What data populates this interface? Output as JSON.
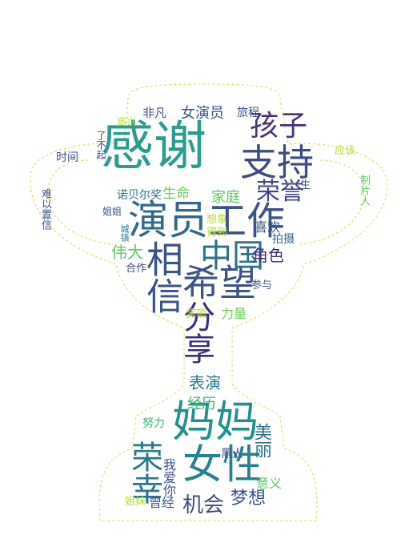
{
  "wordcloud": {
    "shape": "trophy",
    "outline_color": "#e8d44a",
    "background": "#ffffff",
    "words": [
      {
        "text": "感谢",
        "color": "#2a9d8f"
      },
      {
        "text": "工作",
        "color": "#3b528b"
      },
      {
        "text": "演员",
        "color": "#31688e"
      },
      {
        "text": "希望",
        "color": "#3b528b"
      },
      {
        "text": "支持",
        "color": "#3e4a89"
      },
      {
        "text": "相信",
        "color": "#3b528b"
      },
      {
        "text": "中国",
        "color": "#2c728e"
      },
      {
        "text": "分享",
        "color": "#3b2f7d"
      },
      {
        "text": "孩子",
        "color": "#46327e"
      },
      {
        "text": "荣誉",
        "color": "#414487"
      },
      {
        "text": "女演员",
        "color": "#3b528b"
      },
      {
        "text": "妈妈",
        "color": "#21918c"
      },
      {
        "text": "女性",
        "color": "#26828e"
      },
      {
        "text": "荣幸",
        "color": "#2a788e"
      },
      {
        "text": "机会",
        "color": "#3e4a89"
      },
      {
        "text": "梦想",
        "color": "#3b528b"
      },
      {
        "text": "美丽",
        "color": "#2c728e"
      },
      {
        "text": "伟大",
        "color": "#5ec962"
      },
      {
        "text": "角色",
        "color": "#3b2f7d"
      },
      {
        "text": "家庭",
        "color": "#5ec962"
      },
      {
        "text": "生命",
        "color": "#6ece58"
      },
      {
        "text": "表演",
        "color": "#2a788e"
      },
      {
        "text": "经历",
        "color": "#35b779"
      },
      {
        "text": "力量",
        "color": "#6ece58"
      },
      {
        "text": "喜欢",
        "color": "#3b528b"
      },
      {
        "text": "拍摄",
        "color": "#31688e"
      },
      {
        "text": "非凡",
        "color": "#3b528b"
      },
      {
        "text": "旅程",
        "color": "#3b528b"
      },
      {
        "text": "诺贝尔奖",
        "color": "#2c728e"
      },
      {
        "text": "意义",
        "color": "#5ec962"
      },
      {
        "text": "曾经",
        "color": "#3b528b"
      },
      {
        "text": "努力",
        "color": "#35b779"
      },
      {
        "text": "姐妹",
        "color": "#b5de2b"
      },
      {
        "text": "我爱你",
        "color": "#3b528b"
      },
      {
        "text": "黑人",
        "color": "#414487"
      },
      {
        "text": "奖项",
        "color": "#b5de2b"
      },
      {
        "text": "合作",
        "color": "#3e4a89"
      },
      {
        "text": "参与",
        "color": "#3b528b"
      },
      {
        "text": "得到",
        "color": "#b5de2b"
      },
      {
        "text": "想象",
        "color": "#b5de2b"
      },
      {
        "text": "时间",
        "color": "#3b528b"
      },
      {
        "text": "了不起",
        "color": "#3b528b"
      },
      {
        "text": "难以置信",
        "color": "#3b528b"
      },
      {
        "text": "制片人",
        "color": "#5ec962"
      },
      {
        "text": "应该",
        "color": "#b5de2b"
      },
      {
        "text": "一生",
        "color": "#3b528b"
      },
      {
        "text": "高兴",
        "color": "#b5de2b"
      },
      {
        "text": "姐姐",
        "color": "#3b528b"
      },
      {
        "text": "城镇",
        "color": "#2a788e"
      }
    ]
  }
}
